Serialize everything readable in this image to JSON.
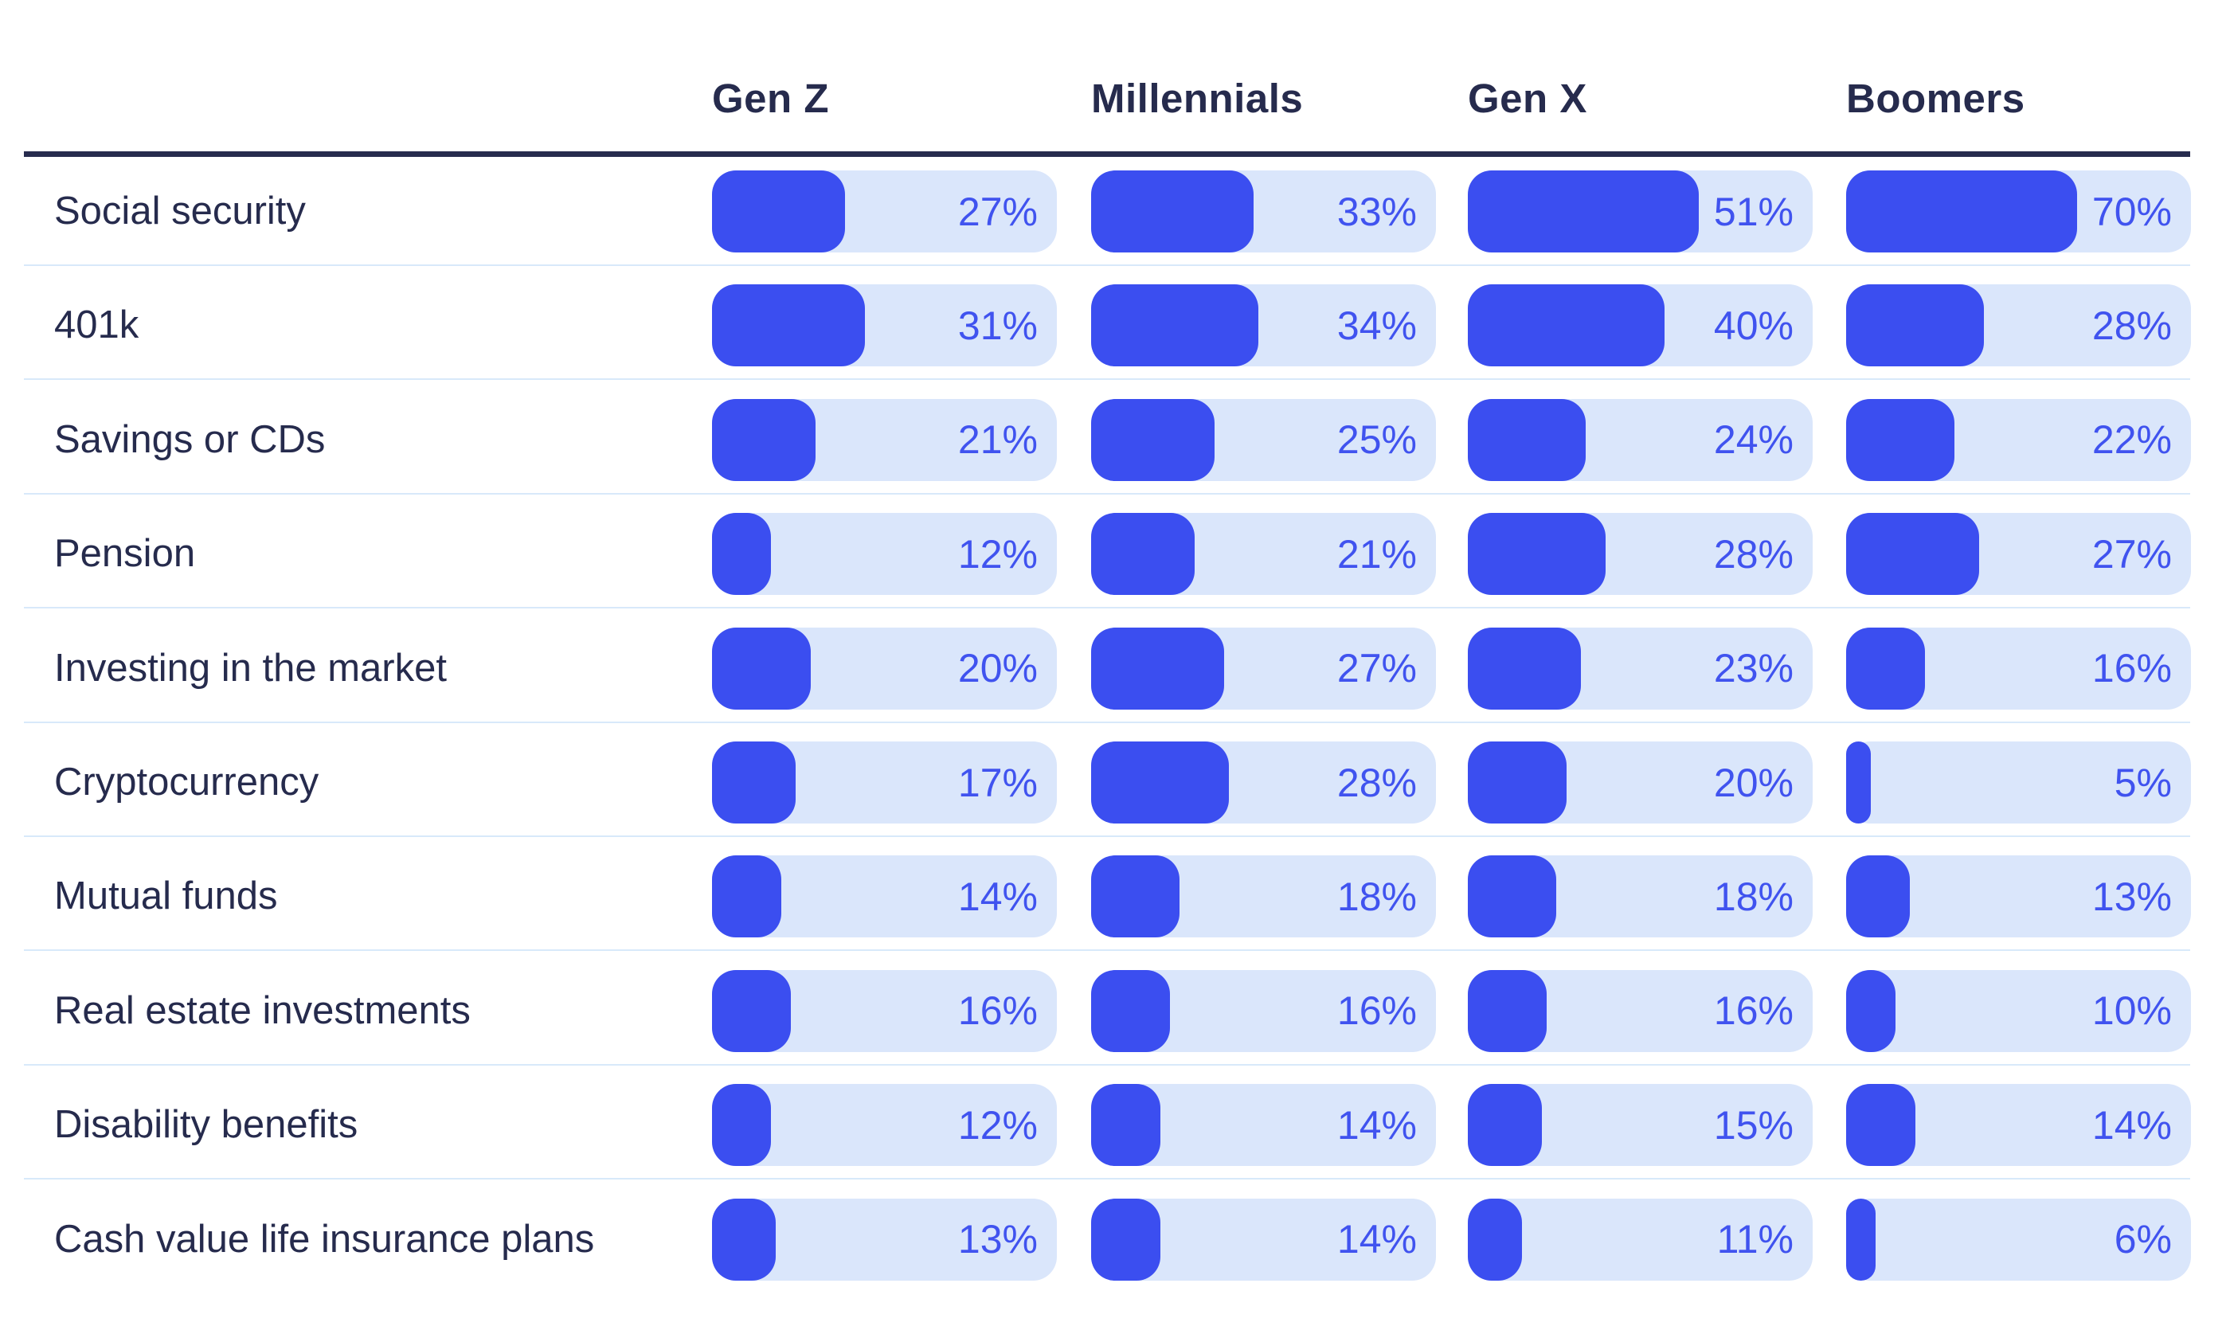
{
  "chart_data": {
    "type": "bar",
    "orientation": "horizontal",
    "columns": [
      "Gen Z",
      "Millennials",
      "Gen X",
      "Boomers"
    ],
    "categories": [
      "Social security",
      "401k",
      "Savings or CDs",
      "Pension",
      "Investing in the market",
      "Cryptocurrency",
      "Mutual funds",
      "Real estate investments",
      "Disability benefits",
      "Cash value life insurance plans"
    ],
    "series": [
      {
        "name": "Gen Z",
        "values": [
          27,
          31,
          21,
          12,
          20,
          17,
          14,
          16,
          12,
          13
        ]
      },
      {
        "name": "Millennials",
        "values": [
          33,
          34,
          25,
          21,
          27,
          28,
          18,
          16,
          14,
          14
        ]
      },
      {
        "name": "Gen X",
        "values": [
          51,
          40,
          24,
          28,
          23,
          20,
          18,
          16,
          15,
          11
        ]
      },
      {
        "name": "Boomers",
        "values": [
          70,
          28,
          22,
          27,
          16,
          5,
          13,
          10,
          14,
          6
        ]
      }
    ],
    "value_suffix": "%",
    "scale_max": 70,
    "legend_position": "top",
    "grid": "row-dividers-only",
    "colors": {
      "bar_fill": "#3b4ef0",
      "bar_track": "#dae6fb",
      "value_text": "#4053ef",
      "label_text": "#262b4d",
      "header_text": "#262b4d",
      "header_rule": "#272c4e",
      "row_divider": "#d8e9fa",
      "background": "#ffffff"
    }
  }
}
